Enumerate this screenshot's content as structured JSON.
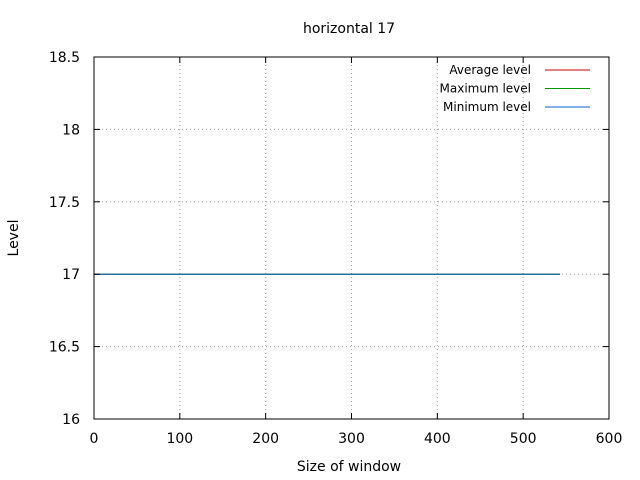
{
  "chart_data": {
    "type": "line",
    "title": "horizontal 17",
    "xlabel": "Size of window",
    "ylabel": "Level",
    "xlim": [
      0,
      600
    ],
    "ylim": [
      16,
      18.5
    ],
    "xticks": [
      0,
      100,
      200,
      300,
      400,
      500,
      600
    ],
    "yticks": [
      16,
      16.5,
      17,
      17.5,
      18,
      18.5
    ],
    "grid": true,
    "legend_position": "top-right",
    "series": [
      {
        "name": "Average level",
        "color": "#cc0000",
        "x": [
          0,
          543
        ],
        "y": [
          17,
          17
        ]
      },
      {
        "name": "Maximum level",
        "color": "#009900",
        "x": [
          0,
          543
        ],
        "y": [
          17,
          17
        ]
      },
      {
        "name": "Minimum level",
        "color": "#0066cc",
        "x": [
          0,
          543
        ],
        "y": [
          17,
          17
        ]
      }
    ]
  }
}
